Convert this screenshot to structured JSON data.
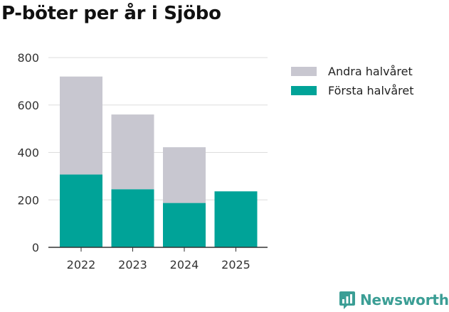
{
  "chart_data": {
    "type": "bar",
    "stacked": true,
    "title": "P-böter per år i Sjöbo",
    "categories": [
      "2022",
      "2023",
      "2024",
      "2025"
    ],
    "series": [
      {
        "name": "Första halvåret",
        "color": "#00a398",
        "values": [
          307,
          245,
          187,
          236
        ]
      },
      {
        "name": "Andra halvåret",
        "color": "#c8c7d0",
        "values": [
          413,
          315,
          235,
          0
        ]
      }
    ],
    "legend_order": [
      "Andra halvåret",
      "Första halvåret"
    ],
    "ylim": [
      0,
      800
    ],
    "yticks": [
      0,
      200,
      400,
      600,
      800
    ],
    "grid": true,
    "legend_position": "right"
  },
  "brand": {
    "name": "Newsworthy",
    "color": "#3b9e95"
  }
}
